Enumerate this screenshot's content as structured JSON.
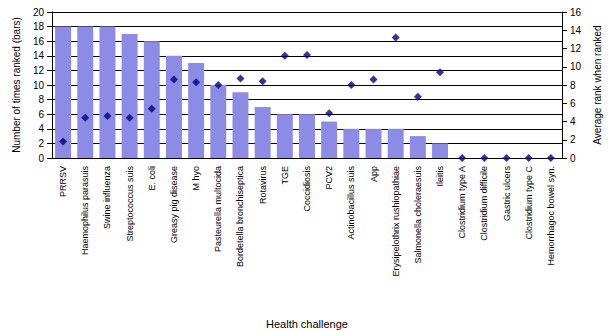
{
  "chart_data": {
    "type": "bar",
    "x_label": "Health challenge",
    "y_label": "Number of times ranked (bars)",
    "y2_label": "Average rank when ranked",
    "categories": [
      "PRRSV",
      "Haemophilus parasuis",
      "Swine influenza",
      "Streptococcus suis",
      "E. coli",
      "Greasy pig disease",
      "M hyo",
      "Pasteurella multocida",
      "Bordetella bronchiseptica",
      "Rotavirus",
      "TGE",
      "Coccidiosis",
      "PCV2",
      "Actinobacillus suis",
      "App",
      "Erysipelothrix rushiopathiae",
      "Salmonella choleraesuis",
      "Ileitis",
      "Clostridium type A",
      "Clostridium difficile",
      "Gastric ulcers",
      "Clostridium type C",
      "Hemorrhagoc bowel syn."
    ],
    "series": [
      {
        "type": "bar",
        "color": "#8c8ce6",
        "values": [
          18,
          18,
          18,
          17,
          16,
          14,
          13,
          10,
          9,
          7,
          6,
          6,
          5,
          4,
          4,
          4,
          3,
          2,
          0,
          0,
          0,
          0,
          0
        ]
      },
      {
        "type": "scatter",
        "axis": "y2",
        "marker": "diamond",
        "color": "#000080",
        "values": [
          1.8,
          4.4,
          4.6,
          4.4,
          5.4,
          8.6,
          8.3,
          8.0,
          8.7,
          8.4,
          11.2,
          11.3,
          4.9,
          8.0,
          8.6,
          13.2,
          6.7,
          9.4,
          0,
          0,
          0,
          0,
          0
        ]
      }
    ],
    "ylim": [
      0,
      20
    ],
    "yticks": [
      0,
      2,
      4,
      6,
      8,
      10,
      12,
      14,
      16,
      18,
      20
    ],
    "y2lim": [
      0,
      16
    ],
    "y2ticks": [
      0,
      2,
      4,
      6,
      8,
      10,
      12,
      14,
      16
    ],
    "grid": true
  }
}
